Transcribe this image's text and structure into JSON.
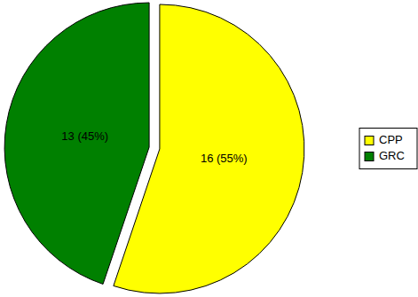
{
  "chart_data": {
    "type": "pie",
    "categories": [
      "CPP",
      "GRC"
    ],
    "values": [
      16,
      13
    ],
    "value_labels": [
      "16 (55%)",
      "13 (45%)"
    ],
    "colors": [
      "#ffff00",
      "#008000"
    ],
    "data_labels": true,
    "legend": "right"
  }
}
